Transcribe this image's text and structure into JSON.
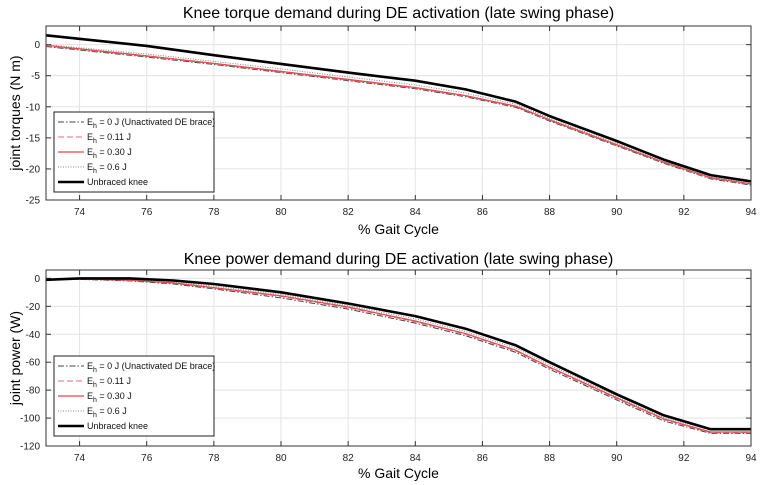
{
  "chart_data": [
    {
      "type": "line",
      "title": "Knee torque demand during DE activation (late swing phase)",
      "xlabel": "% Gait Cycle",
      "ylabel": "joint torques (N m)",
      "xlim": [
        73,
        94
      ],
      "ylim": [
        -25,
        3
      ],
      "xticks": [
        74,
        76,
        78,
        80,
        82,
        84,
        86,
        88,
        90,
        92,
        94
      ],
      "yticks": [
        0,
        -5,
        -10,
        -15,
        -20,
        -25
      ],
      "grid": true,
      "legend_placement": "lower-left",
      "x": [
        73,
        76,
        78,
        80,
        82,
        84,
        85.5,
        87,
        88,
        90,
        91.4,
        92.8,
        94
      ],
      "series": [
        {
          "name": "E_h = 0 J (Unactivated DE brace)",
          "legend_main": "E",
          "legend_sub": "h",
          "legend_rest": " = 0 J (Unactivated DE brace)",
          "style": "dashdot",
          "color": "#444444",
          "values": [
            -0.3,
            -2.0,
            -3.2,
            -4.5,
            -5.8,
            -7.1,
            -8.4,
            -10.1,
            -12.3,
            -16.3,
            -19.1,
            -21.6,
            -22.6
          ]
        },
        {
          "name": "E_h = 0.11 J",
          "legend_main": "E",
          "legend_sub": "h",
          "legend_rest": " = 0.11 J",
          "style": "dashed",
          "color": "#d9707a",
          "values": [
            -0.2,
            -1.9,
            -3.1,
            -4.4,
            -5.7,
            -7.0,
            -8.3,
            -10.0,
            -12.2,
            -16.2,
            -19.0,
            -21.5,
            -22.5
          ]
        },
        {
          "name": "E_h = 0.30 J",
          "legend_main": "E",
          "legend_sub": "h",
          "legend_rest": " = 0.30 J",
          "style": "solid",
          "color": "#e8474f",
          "values": [
            -0.1,
            -1.8,
            -3.0,
            -4.3,
            -5.6,
            -6.9,
            -8.2,
            -9.9,
            -12.1,
            -16.1,
            -18.9,
            -21.4,
            -22.4
          ]
        },
        {
          "name": "E_h = 0.6 J",
          "legend_main": "E",
          "legend_sub": "h",
          "legend_rest": " = 0.6 J",
          "style": "dotted",
          "color": "#888888",
          "values": [
            0.0,
            -1.5,
            -2.7,
            -3.9,
            -5.2,
            -6.5,
            -7.8,
            -9.6,
            -11.9,
            -15.9,
            -18.8,
            -21.3,
            -22.2
          ]
        },
        {
          "name": "Unbraced knee",
          "legend_main": "Unbraced knee",
          "legend_sub": "",
          "legend_rest": "",
          "style": "thick",
          "color": "#000000",
          "values": [
            1.5,
            -0.2,
            -1.7,
            -3.1,
            -4.5,
            -5.8,
            -7.2,
            -9.2,
            -11.5,
            -15.5,
            -18.5,
            -21.0,
            -22.0
          ]
        }
      ]
    },
    {
      "type": "line",
      "title": "Knee power demand during DE activation (late swing phase)",
      "xlabel": "% Gait Cycle",
      "ylabel": "joint power (W)",
      "xlim": [
        73,
        94
      ],
      "ylim": [
        -120,
        6
      ],
      "xticks": [
        74,
        76,
        78,
        80,
        82,
        84,
        86,
        88,
        90,
        92,
        94
      ],
      "yticks": [
        0,
        -20,
        -40,
        -60,
        -80,
        -100,
        -120
      ],
      "grid": true,
      "legend_placement": "lower-left",
      "x": [
        73,
        74,
        75.5,
        76.8,
        78,
        80,
        82,
        84,
        85.5,
        87,
        88,
        90,
        91.4,
        92.8,
        94
      ],
      "series": [
        {
          "name": "E_h = 0 J (Unactivated DE brace)",
          "legend_main": "E",
          "legend_sub": "h",
          "legend_rest": " = 0 J (Unactivated DE brace)",
          "style": "dashdot",
          "color": "#444444",
          "values": [
            -1,
            -0.7,
            -1.8,
            -4,
            -7.5,
            -14,
            -22,
            -32,
            -41,
            -53,
            -65,
            -87,
            -102,
            -111,
            -111
          ]
        },
        {
          "name": "E_h = 0.11 J",
          "legend_main": "E",
          "legend_sub": "h",
          "legend_rest": " = 0.11 J",
          "style": "dashed",
          "color": "#d9707a",
          "values": [
            -1,
            -0.5,
            -1.5,
            -3.5,
            -7,
            -13,
            -21,
            -31,
            -40,
            -52,
            -64,
            -86,
            -101,
            -110.5,
            -110.5
          ]
        },
        {
          "name": "E_h = 0.30 J",
          "legend_main": "E",
          "legend_sub": "h",
          "legend_rest": " = 0.30 J",
          "style": "solid",
          "color": "#e8474f",
          "values": [
            -1,
            -0.4,
            -1.3,
            -3.2,
            -6.6,
            -12.5,
            -20.5,
            -30.5,
            -39.5,
            -51.5,
            -63.5,
            -85.5,
            -100.5,
            -110,
            -110
          ]
        },
        {
          "name": "E_h = 0.6 J",
          "legend_main": "E",
          "legend_sub": "h",
          "legend_rest": " = 0.6 J",
          "style": "dotted",
          "color": "#888888",
          "values": [
            -1,
            -0.2,
            -0.8,
            -2.5,
            -5.5,
            -11.5,
            -19.5,
            -29,
            -38,
            -50,
            -62,
            -84.5,
            -99.5,
            -108.5,
            -108
          ]
        },
        {
          "name": "Unbraced knee",
          "legend_main": "Unbraced knee",
          "legend_sub": "",
          "legend_rest": "",
          "style": "thick",
          "color": "#000000",
          "values": [
            -1,
            0,
            0,
            -1.5,
            -4,
            -10,
            -18,
            -27,
            -36,
            -48,
            -60,
            -83,
            -98,
            -108,
            -108
          ]
        }
      ]
    }
  ]
}
